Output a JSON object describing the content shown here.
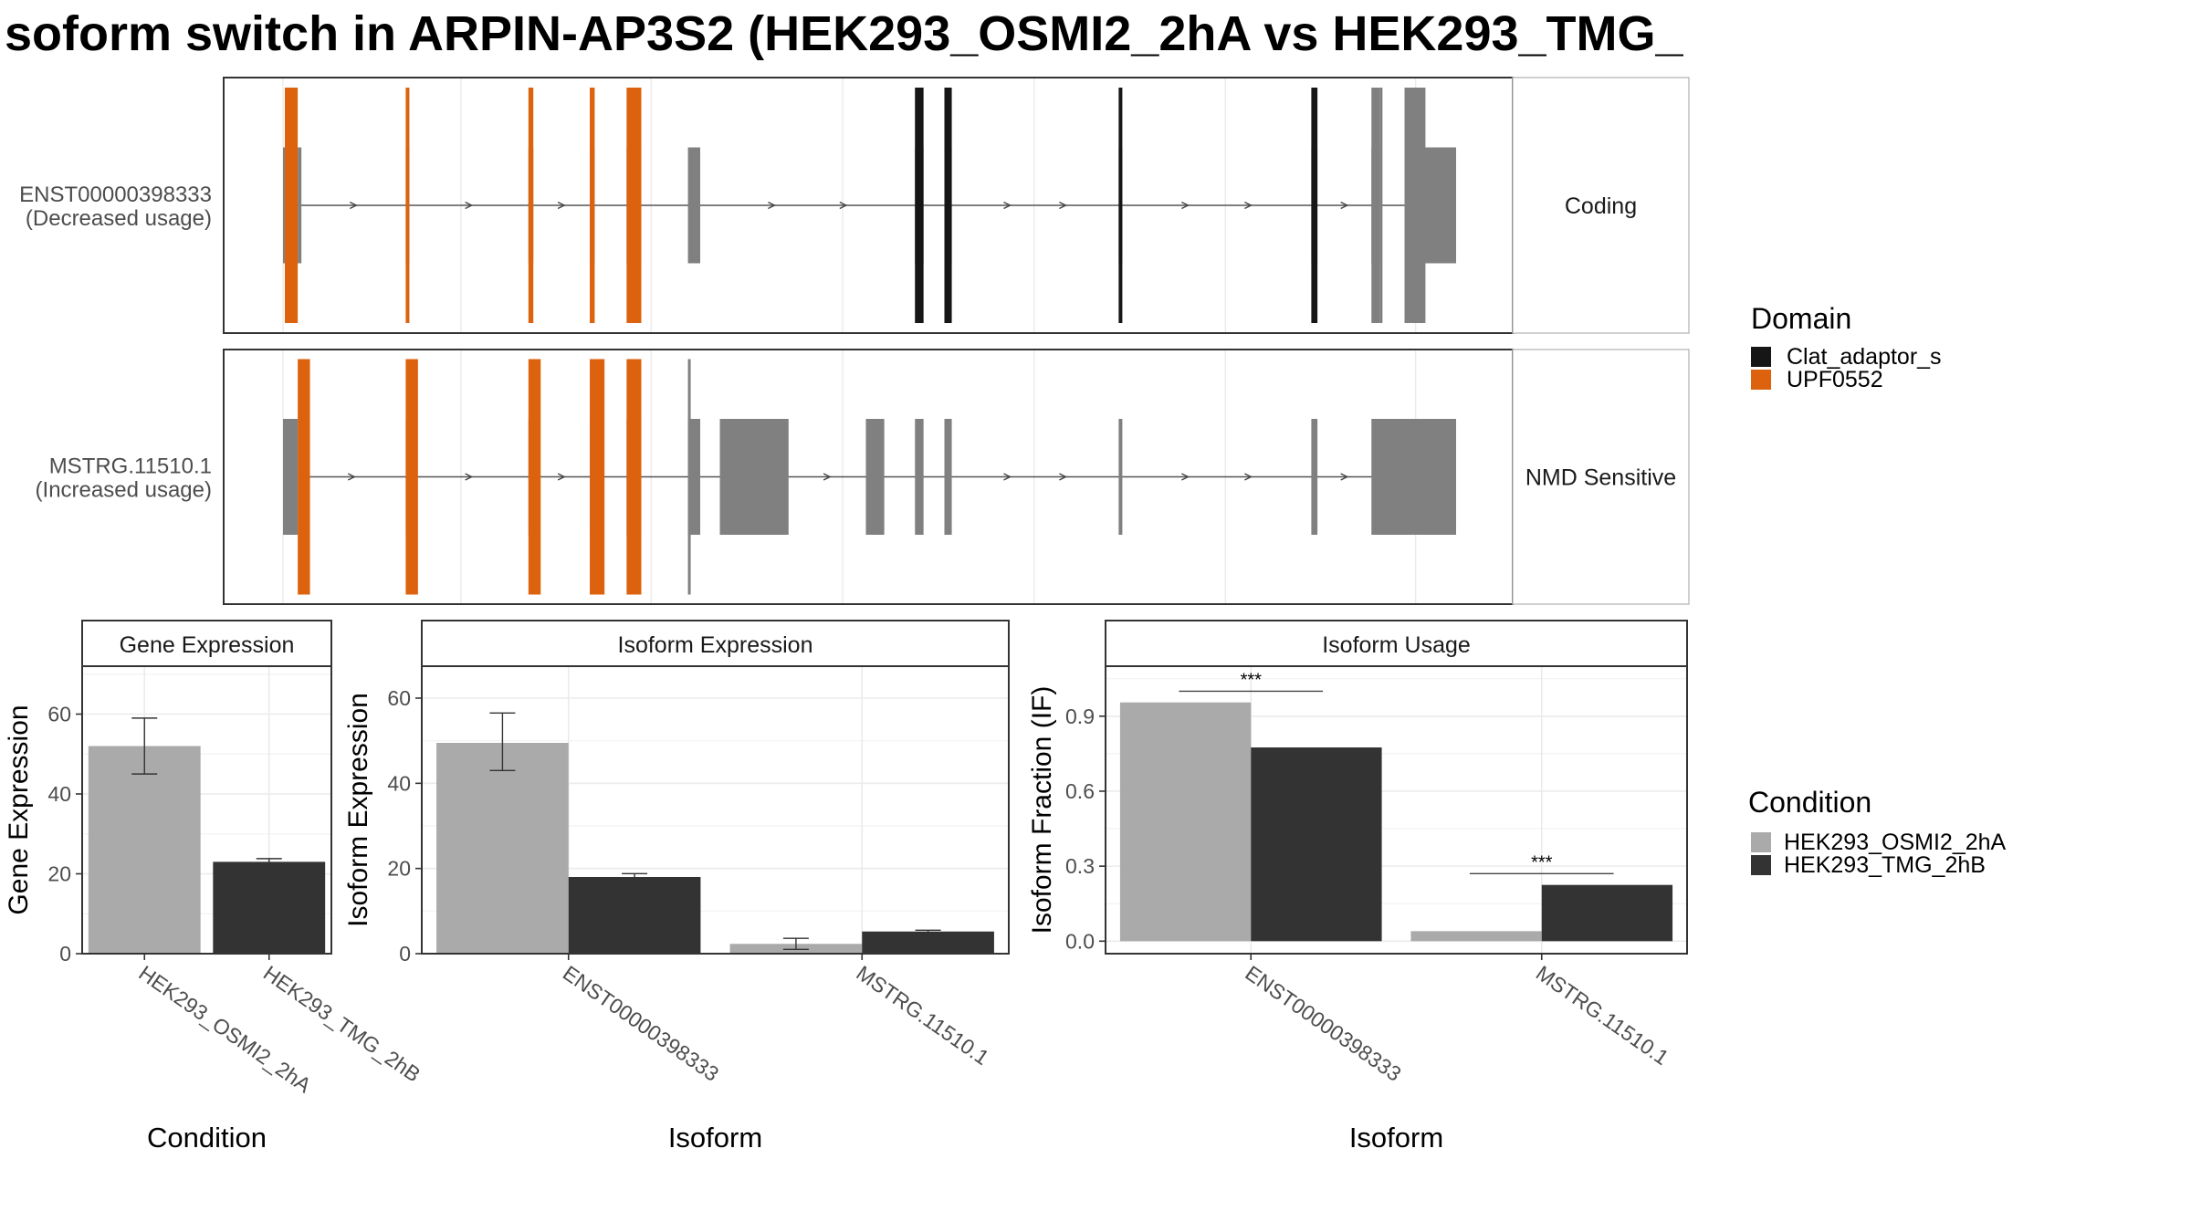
{
  "title": "soform switch in ARPIN-AP3S2 (HEK293_OSMI2_2hA vs HEK293_TMG_",
  "colors": {
    "upf": "#dc620e",
    "clat": "#161616",
    "exon": "#808080",
    "osmi": "#aaaaaa",
    "tmg": "#333333",
    "grid": "#ebebeb",
    "strip_bg": "#ffffff"
  },
  "chart_data": [
    {
      "type": "gene-structure",
      "transcripts": [
        {
          "id": "ENST00000398333",
          "usage": "(Decreased usage)",
          "category": "Coding",
          "exons": [
            [
              0,
              1.5
            ],
            [
              12,
              15
            ],
            [
              100,
              103
            ],
            [
              200,
              204
            ],
            [
              250,
              254
            ],
            [
              280,
              292
            ],
            [
              330,
              340
            ],
            [
              515,
              522
            ],
            [
              539,
              545
            ],
            [
              681,
              684
            ],
            [
              838,
              843
            ],
            [
              887,
              894
            ],
            [
              914,
              931
            ]
          ],
          "domains": [
            {
              "domain": "UPF0552",
              "segments": [
                [
                  1.5,
                  12
                ],
                [
                  100,
                  103
                ],
                [
                  200,
                  204
                ],
                [
                  250,
                  254
                ],
                [
                  280,
                  292
                ]
              ]
            },
            {
              "domain": "Clat_adaptor_s",
              "segments": [
                [
                  515,
                  522
                ],
                [
                  539,
                  545
                ],
                [
                  681,
                  684
                ],
                [
                  838,
                  843
                ]
              ]
            }
          ],
          "utr": [
            [
              0,
              1.5
            ],
            [
              887,
              894
            ],
            [
              914,
              931
            ]
          ]
        },
        {
          "id": "MSTRG.11510.1",
          "usage": "(Increased usage)",
          "category": "NMD Sensitive",
          "exons": [
            [
              0,
              12
            ],
            [
              100,
              103
            ],
            [
              200,
              204
            ],
            [
              250,
              254
            ],
            [
              280,
              292
            ],
            [
              330,
              340
            ],
            [
              356,
              412
            ],
            [
              475,
              490
            ],
            [
              515,
              522
            ],
            [
              539,
              545
            ],
            [
              681,
              684
            ],
            [
              838,
              843
            ],
            [
              887,
              956
            ]
          ],
          "domains": [
            {
              "domain": "UPF0552",
              "segments": [
                [
                  12,
                  22
                ],
                [
                  100,
                  110
                ],
                [
                  200,
                  210
                ],
                [
                  250,
                  262
                ],
                [
                  280,
                  292
                ]
              ]
            }
          ]
        }
      ],
      "legend_title": "Domain",
      "legend": [
        "Clat_adaptor_s",
        "UPF0552"
      ]
    },
    {
      "type": "bar",
      "panel_title": "Gene Expression",
      "xlabel": "Condition",
      "ylabel": "Gene Expression",
      "categories": [
        "HEK293_OSMI2_2hA",
        "HEK293_TMG_2hB"
      ],
      "values": [
        52,
        23
      ],
      "error": [
        [
          45,
          59
        ],
        [
          22.5,
          23.8
        ]
      ],
      "ylim": [
        0,
        72
      ],
      "yticks": [
        0,
        20,
        40,
        60
      ]
    },
    {
      "type": "bar",
      "panel_title": "Isoform Expression",
      "xlabel": "Isoform",
      "ylabel": "Isoform Expression",
      "categories": [
        "ENST00000398333",
        "MSTRG.11510.1"
      ],
      "series": [
        {
          "name": "HEK293_OSMI2_2hA",
          "values": [
            49.5,
            2.3
          ],
          "error": [
            [
              43,
              56.5
            ],
            [
              1,
              3.6
            ]
          ]
        },
        {
          "name": "HEK293_TMG_2hB",
          "values": [
            18,
            5.2
          ],
          "error": [
            [
              17.2,
              18.8
            ],
            [
              4.9,
              5.5
            ]
          ]
        }
      ],
      "ylim": [
        0,
        67.5
      ],
      "yticks": [
        0,
        20,
        40,
        60
      ]
    },
    {
      "type": "bar",
      "panel_title": "Isoform Usage",
      "xlabel": "Isoform",
      "ylabel": "Isoform Fraction (IF)",
      "categories": [
        "ENST00000398333",
        "MSTRG.11510.1"
      ],
      "series": [
        {
          "name": "HEK293_OSMI2_2hA",
          "values": [
            0.955,
            0.04
          ]
        },
        {
          "name": "HEK293_TMG_2hB",
          "values": [
            0.775,
            0.225
          ]
        }
      ],
      "significance": [
        {
          "label": "***",
          "y": 1.0
        },
        {
          "label": "***",
          "y": 0.27
        }
      ],
      "ylim": [
        -0.05,
        1.1
      ],
      "yticks": [
        0.0,
        0.3,
        0.6,
        0.9
      ],
      "ytick_labels": [
        "0.0",
        "0.3",
        "0.6",
        "0.9"
      ]
    }
  ],
  "condition_legend": {
    "title": "Condition",
    "items": [
      "HEK293_OSMI2_2hA",
      "HEK293_TMG_2hB"
    ]
  }
}
